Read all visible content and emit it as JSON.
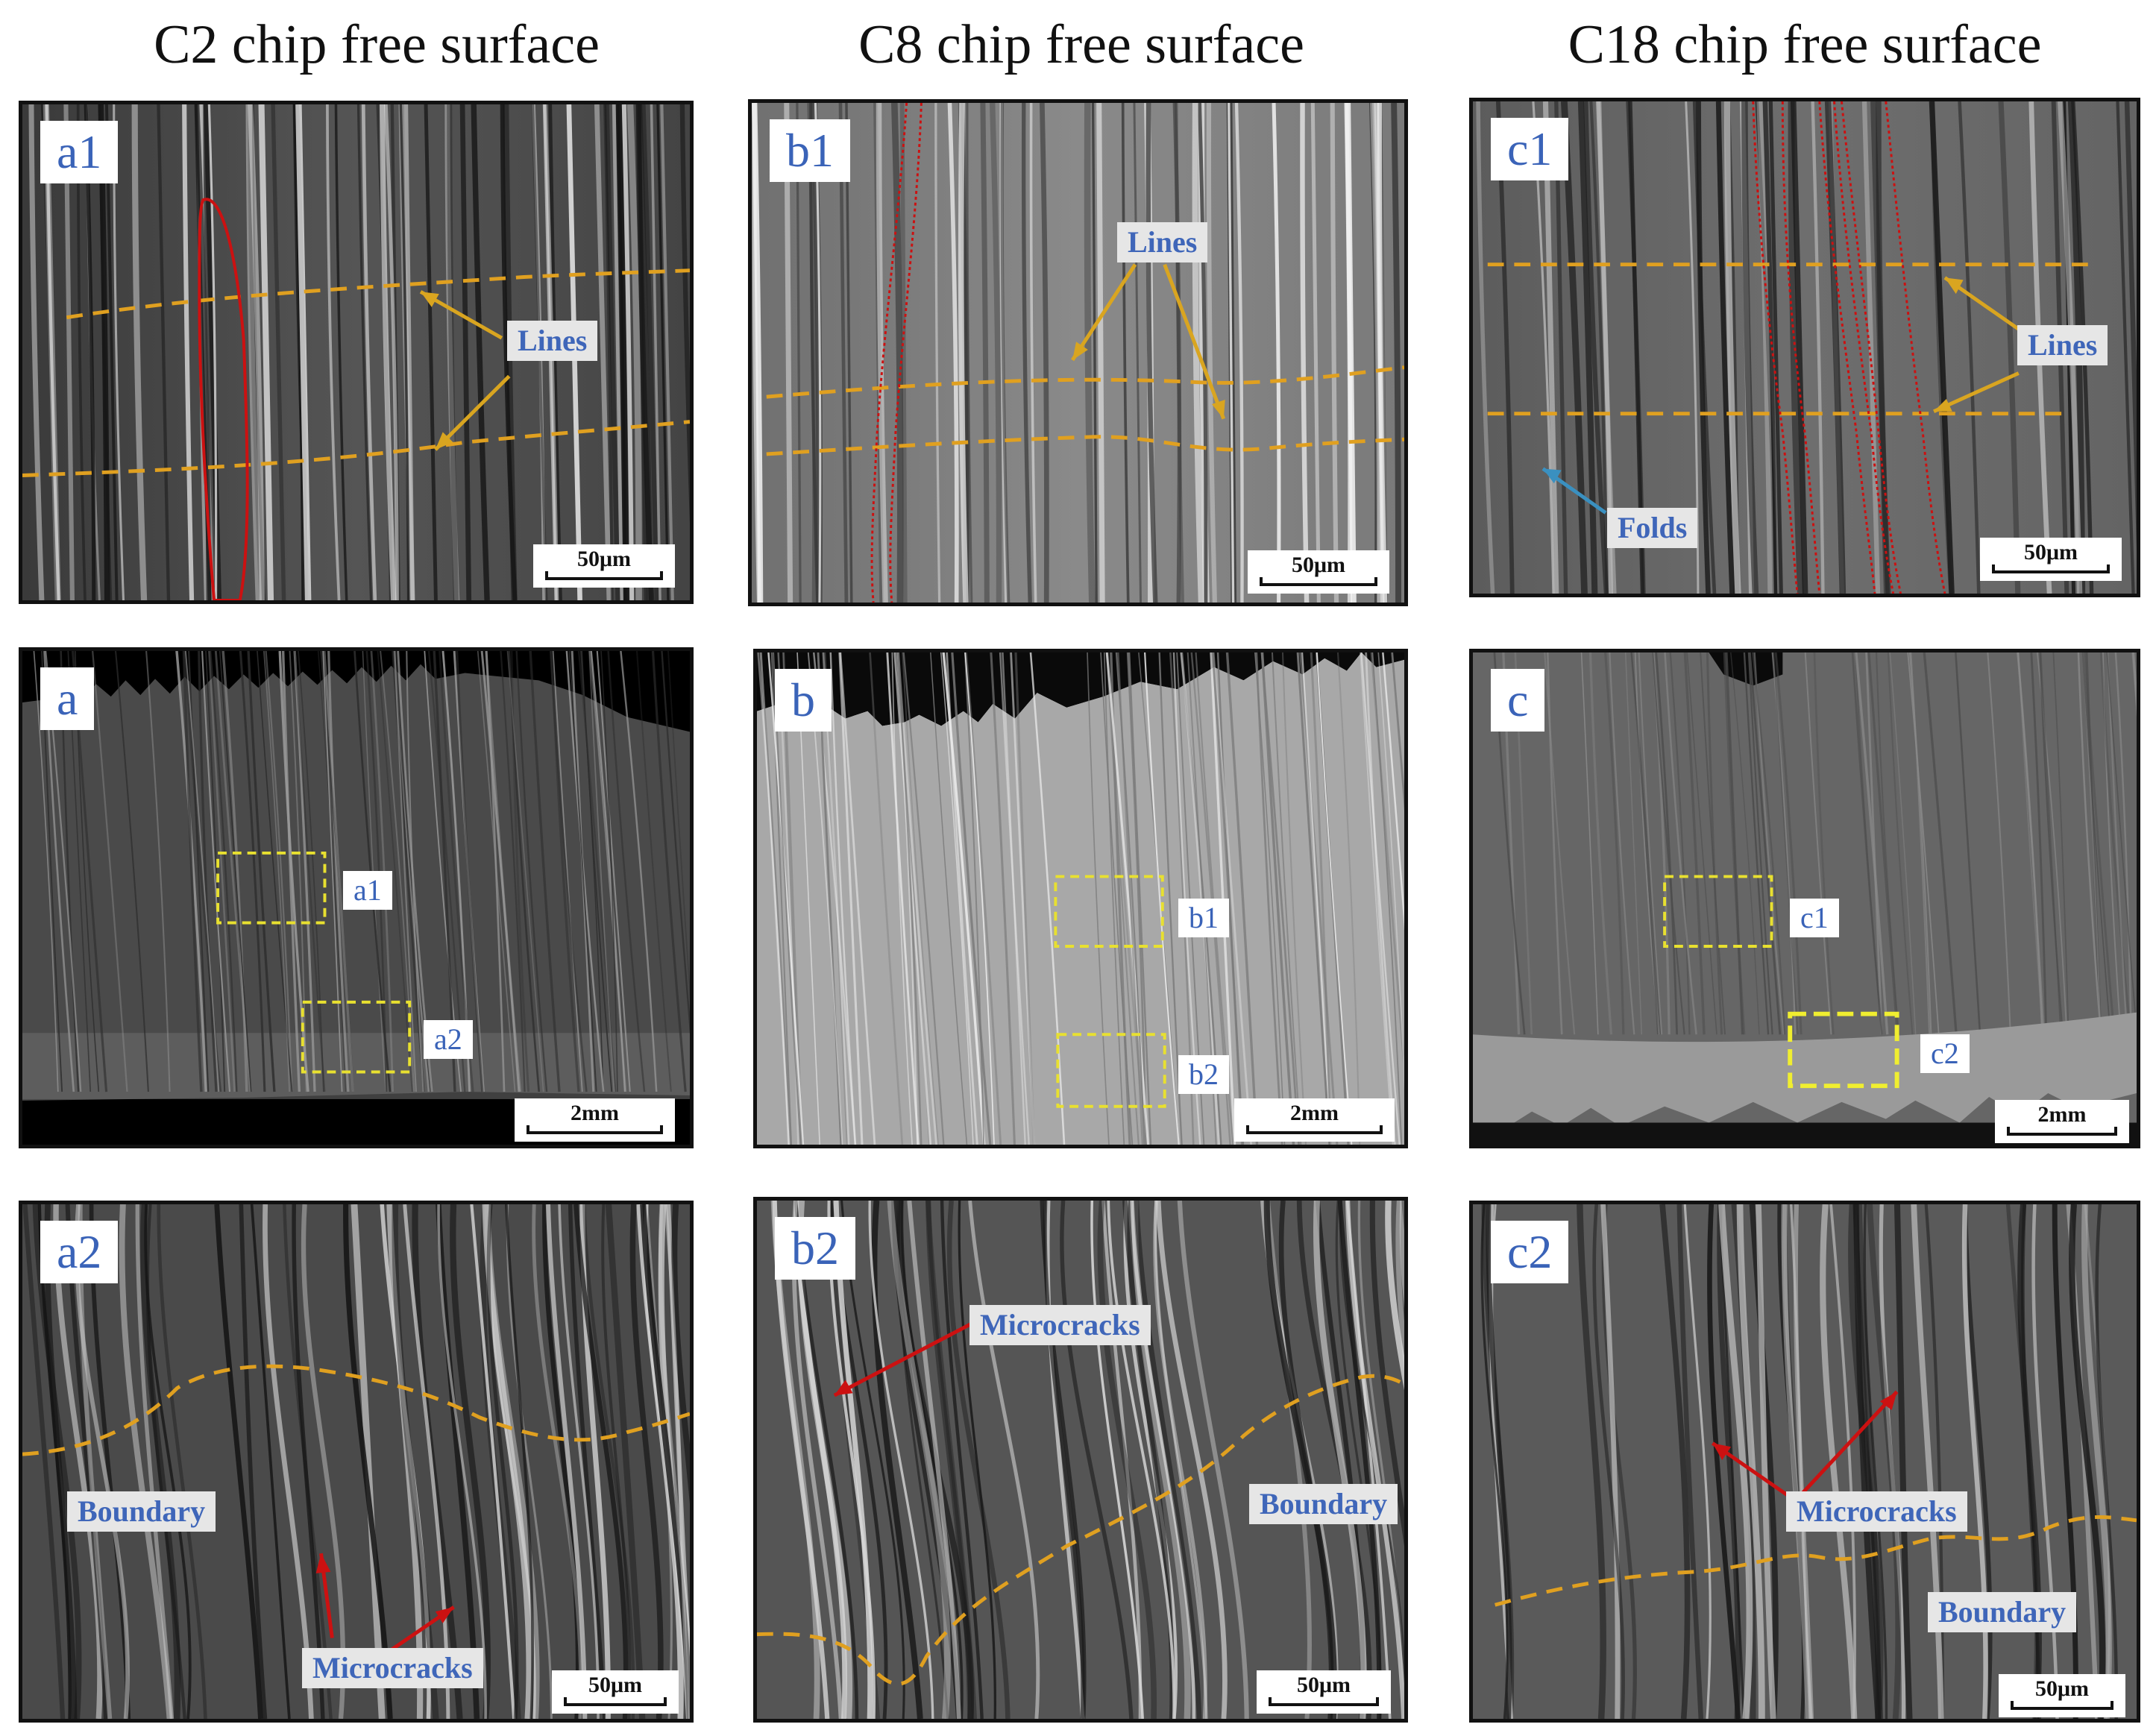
{
  "titles": {
    "c2": "C2 chip free surface",
    "c8": "C8 chip free surface",
    "c18": "C18 chip free surface"
  },
  "panels": {
    "a1": {
      "label": "a1",
      "scale": "50μm",
      "callouts": [
        "Lines"
      ]
    },
    "b1": {
      "label": "b1",
      "scale": "50μm",
      "callouts": [
        "Lines"
      ]
    },
    "c1": {
      "label": "c1",
      "scale": "50μm",
      "callouts": [
        "Lines",
        "Folds"
      ]
    },
    "a": {
      "label": "a",
      "scale": "2mm",
      "boxes": [
        "a1",
        "a2"
      ]
    },
    "b": {
      "label": "b",
      "scale": "2mm",
      "boxes": [
        "b1",
        "b2"
      ]
    },
    "c": {
      "label": "c",
      "scale": "2mm",
      "boxes": [
        "c1",
        "c2"
      ]
    },
    "a2": {
      "label": "a2",
      "scale": "50μm",
      "callouts": [
        "Boundary",
        "Microcracks"
      ]
    },
    "b2": {
      "label": "b2",
      "scale": "50μm",
      "callouts": [
        "Microcracks",
        "Boundary"
      ]
    },
    "c2": {
      "label": "c2",
      "scale": "50μm",
      "callouts": [
        "Microcracks",
        "Boundary"
      ]
    }
  },
  "colors": {
    "label_text": "#3a63b8",
    "callout_bg": "#e6e6e6",
    "lines_dash": "#e0a020",
    "deformed_grain": "#cc1111",
    "microcrack_arrow": "#cc1111",
    "folds_arrow": "#3a90c0",
    "region_box": "#e8e030"
  }
}
